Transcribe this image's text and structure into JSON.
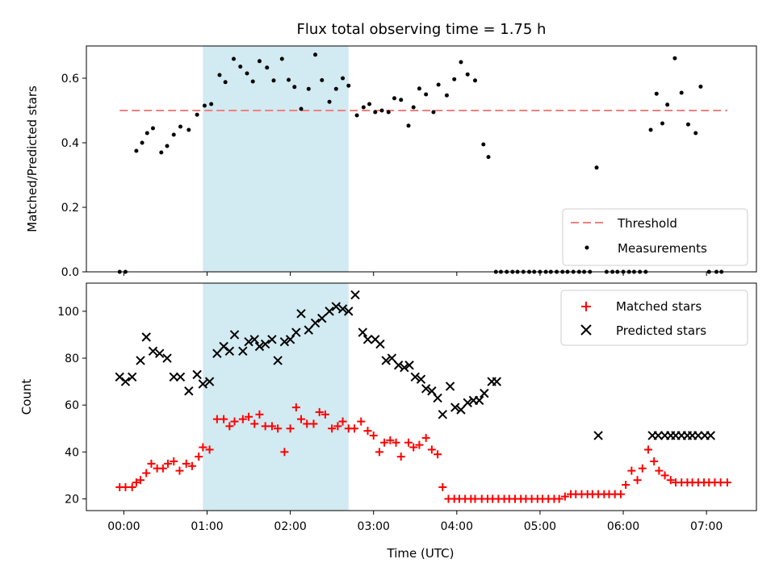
{
  "chart_data": [
    {
      "type": "scatter",
      "title": "Flux total observing time = 1.75 h",
      "xlabel": "",
      "ylabel": "Matched/Predicted stars",
      "xlim": [
        -0.45,
        7.6
      ],
      "ylim": [
        0,
        0.7
      ],
      "yticks": [
        0.0,
        0.2,
        0.4,
        0.6
      ],
      "ytick_labels": [
        "0.0",
        "0.2",
        "0.4",
        "0.6"
      ],
      "shaded_region": {
        "x": [
          0.95,
          2.7
        ],
        "color": "#add8e6"
      },
      "threshold": {
        "name": "Threshold",
        "y": 0.5,
        "x": [
          -0.05,
          7.25
        ],
        "color": "#f08080",
        "style": "dashed"
      },
      "legend": {
        "placement": "lower-right",
        "entries": [
          "Threshold",
          "Measurements"
        ]
      },
      "series": [
        {
          "name": "Measurements",
          "marker": "dot",
          "color": "#000000",
          "x": [
            -0.05,
            0.02,
            0.15,
            0.22,
            0.28,
            0.35,
            0.45,
            0.52,
            0.6,
            0.68,
            0.78,
            0.88,
            0.97,
            1.05,
            1.15,
            1.22,
            1.32,
            1.4,
            1.48,
            1.55,
            1.63,
            1.72,
            1.8,
            1.9,
            1.98,
            2.05,
            2.13,
            2.22,
            2.3,
            2.38,
            2.47,
            2.55,
            2.63,
            2.7,
            2.8,
            2.88,
            2.95,
            3.02,
            3.1,
            3.18,
            3.25,
            3.33,
            3.42,
            3.48,
            3.55,
            3.63,
            3.72,
            3.78,
            3.88,
            3.97,
            4.05,
            4.13,
            4.22,
            4.32,
            4.38,
            4.47,
            4.53,
            4.6,
            4.67,
            4.73,
            4.8,
            4.87,
            4.93,
            5.0,
            5.07,
            5.13,
            5.2,
            5.27,
            5.33,
            5.4,
            5.47,
            5.53,
            5.6,
            5.68,
            5.8,
            5.87,
            5.93,
            6.0,
            6.07,
            6.13,
            6.2,
            6.27,
            6.33,
            6.4,
            6.47,
            6.53,
            6.62,
            6.7,
            6.78,
            6.87,
            6.93,
            7.03,
            7.12,
            7.18
          ],
          "y": [
            0.0,
            0.0,
            0.375,
            0.4,
            0.43,
            0.445,
            0.37,
            0.39,
            0.425,
            0.45,
            0.44,
            0.487,
            0.515,
            0.52,
            0.61,
            0.588,
            0.66,
            0.636,
            0.615,
            0.59,
            0.653,
            0.633,
            0.593,
            0.66,
            0.595,
            0.573,
            0.505,
            0.567,
            0.673,
            0.594,
            0.527,
            0.567,
            0.6,
            0.577,
            0.485,
            0.51,
            0.52,
            0.495,
            0.5,
            0.495,
            0.538,
            0.533,
            0.453,
            0.51,
            0.568,
            0.55,
            0.495,
            0.58,
            0.547,
            0.597,
            0.65,
            0.612,
            0.593,
            0.395,
            0.356,
            0.0,
            0.0,
            0.0,
            0.0,
            0.0,
            0.0,
            0.0,
            0.0,
            0.0,
            0.0,
            0.0,
            0.0,
            0.0,
            0.0,
            0.0,
            0.0,
            0.0,
            0.0,
            0.323,
            0.0,
            0.0,
            0.0,
            0.0,
            0.0,
            0.0,
            0.0,
            0.0,
            0.44,
            0.552,
            0.46,
            0.518,
            0.662,
            0.555,
            0.457,
            0.43,
            0.574,
            0.0,
            0.0,
            0.0
          ]
        }
      ]
    },
    {
      "type": "scatter",
      "xlabel": "Time (UTC)",
      "ylabel": "Count",
      "xlim": [
        -0.45,
        7.6
      ],
      "ylim": [
        15,
        112
      ],
      "yticks": [
        20,
        40,
        60,
        80,
        100
      ],
      "ytick_labels": [
        "20",
        "40",
        "60",
        "80",
        "100"
      ],
      "xticks": [
        0,
        1,
        2,
        3,
        4,
        5,
        6,
        7
      ],
      "xtick_labels": [
        "00:00",
        "01:00",
        "02:00",
        "03:00",
        "04:00",
        "05:00",
        "06:00",
        "07:00"
      ],
      "shaded_region": {
        "x": [
          0.95,
          2.7
        ],
        "color": "#add8e6"
      },
      "legend": {
        "placement": "upper-right",
        "entries": [
          "Matched stars",
          "Predicted stars"
        ]
      },
      "series": [
        {
          "name": "Matched stars",
          "marker": "plus",
          "color": "#ff0000",
          "x": [
            -0.05,
            0.02,
            0.1,
            0.15,
            0.2,
            0.27,
            0.33,
            0.4,
            0.47,
            0.53,
            0.6,
            0.67,
            0.75,
            0.82,
            0.9,
            0.95,
            1.03,
            1.12,
            1.2,
            1.27,
            1.33,
            1.43,
            1.5,
            1.57,
            1.63,
            1.7,
            1.78,
            1.85,
            1.93,
            2.0,
            2.07,
            2.13,
            2.2,
            2.28,
            2.35,
            2.42,
            2.5,
            2.57,
            2.63,
            2.7,
            2.77,
            2.85,
            2.93,
            3.0,
            3.07,
            3.13,
            3.2,
            3.27,
            3.33,
            3.42,
            3.48,
            3.55,
            3.63,
            3.7,
            3.77,
            3.83,
            3.9,
            3.97,
            4.03,
            4.1,
            4.17,
            4.22,
            4.3,
            4.37,
            4.43,
            4.5,
            4.57,
            4.63,
            4.7,
            4.77,
            4.83,
            4.9,
            4.97,
            5.03,
            5.1,
            5.17,
            5.23,
            5.3,
            5.37,
            5.43,
            5.5,
            5.57,
            5.63,
            5.7,
            5.77,
            5.83,
            5.9,
            5.97,
            6.03,
            6.1,
            6.17,
            6.23,
            6.3,
            6.37,
            6.43,
            6.5,
            6.57,
            6.63,
            6.7,
            6.77,
            6.83,
            6.9,
            6.97,
            7.03,
            7.1,
            7.17,
            7.25
          ],
          "y": [
            25,
            25,
            25,
            27,
            28,
            31,
            35,
            33,
            33,
            35,
            36,
            32,
            35,
            34,
            38,
            42,
            41,
            54,
            54,
            51,
            53,
            54,
            55,
            52,
            56,
            51,
            51,
            50,
            40,
            50,
            59,
            54,
            52,
            52,
            57,
            56,
            50,
            51,
            53,
            50,
            50,
            53,
            49,
            47,
            40,
            44,
            45,
            44,
            38,
            44,
            42,
            43,
            46,
            41,
            39,
            25,
            20,
            20,
            20,
            20,
            20,
            20,
            20,
            20,
            20,
            20,
            20,
            20,
            20,
            20,
            20,
            20,
            20,
            20,
            20,
            20,
            20,
            21,
            22,
            22,
            22,
            22,
            22,
            22,
            22,
            22,
            22,
            22,
            26,
            32,
            28,
            33,
            41,
            36,
            32,
            30,
            28,
            27,
            27,
            27,
            27,
            27,
            27,
            27,
            27,
            27,
            27
          ],
          "_note": "points aligned to marker positions"
        },
        {
          "name": "Predicted stars",
          "marker": "x",
          "color": "#000000",
          "x": [
            -0.05,
            0.02,
            0.1,
            0.2,
            0.27,
            0.35,
            0.43,
            0.52,
            0.6,
            0.68,
            0.78,
            0.88,
            0.95,
            1.03,
            1.12,
            1.2,
            1.27,
            1.33,
            1.43,
            1.5,
            1.57,
            1.63,
            1.7,
            1.78,
            1.85,
            1.93,
            2.0,
            2.07,
            2.13,
            2.22,
            2.3,
            2.38,
            2.47,
            2.55,
            2.63,
            2.7,
            2.78,
            2.87,
            2.93,
            3.02,
            3.08,
            3.15,
            3.22,
            3.3,
            3.37,
            3.43,
            3.5,
            3.57,
            3.63,
            3.7,
            3.77,
            3.83,
            3.92,
            3.98,
            4.05,
            4.13,
            4.2,
            4.27,
            4.33,
            4.42,
            4.48,
            5.7,
            6.35,
            6.42,
            6.5,
            6.57,
            6.63,
            6.7,
            6.77,
            6.83,
            6.9,
            6.98,
            7.05
          ],
          "y": [
            72,
            70,
            72,
            79,
            89,
            83,
            82,
            80,
            72,
            72,
            66,
            73,
            69,
            70,
            82,
            85,
            83,
            90,
            83,
            87,
            88,
            85,
            86,
            88,
            79,
            87,
            88,
            91,
            99,
            92,
            95,
            97,
            100,
            102,
            101,
            100,
            107,
            91,
            88,
            88,
            86,
            79,
            80,
            77,
            76,
            77,
            72,
            71,
            67,
            66,
            63,
            56,
            68,
            59,
            58,
            61,
            62,
            62,
            65,
            70,
            70,
            47,
            47,
            47,
            47,
            47,
            47,
            47,
            47,
            47,
            47,
            47,
            47
          ],
          "_note": "see points array"
        }
      ]
    }
  ]
}
